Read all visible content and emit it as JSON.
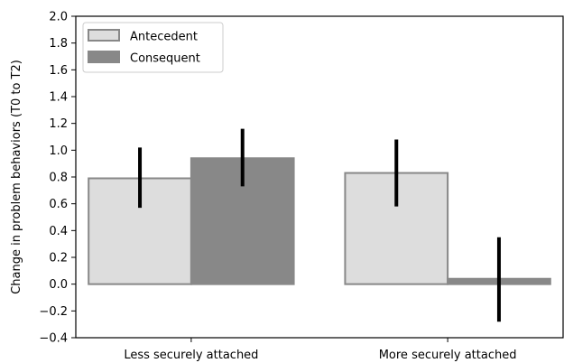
{
  "chart_data": {
    "type": "bar",
    "title": "",
    "xlabel": "",
    "ylabel": "Change in problem behaviors (T0 to T2)",
    "ylim": [
      -0.4,
      2.0
    ],
    "yticks": [
      -0.4,
      -0.2,
      0.0,
      0.2,
      0.4,
      0.6,
      0.8,
      1.0,
      1.2,
      1.4,
      1.6,
      1.8,
      2.0
    ],
    "ytick_labels": [
      "−0.4",
      "−0.2",
      "0.0",
      "0.2",
      "0.4",
      "0.6",
      "0.8",
      "1.0",
      "1.2",
      "1.4",
      "1.6",
      "1.8",
      "2.0"
    ],
    "categories": [
      "Less securely attached",
      "More securely attached"
    ],
    "series": [
      {
        "name": "Antecedent",
        "values": [
          0.79,
          0.83
        ],
        "error_low": [
          0.57,
          0.58
        ],
        "error_high": [
          1.02,
          1.08
        ],
        "fill": "#dddddd",
        "edge": "#888888"
      },
      {
        "name": "Consequent",
        "values": [
          0.94,
          0.04
        ],
        "error_low": [
          0.73,
          -0.28
        ],
        "error_high": [
          1.16,
          0.35
        ],
        "fill": "#888888",
        "edge": "#888888"
      }
    ],
    "grid": false,
    "legend_position": "top-left"
  }
}
